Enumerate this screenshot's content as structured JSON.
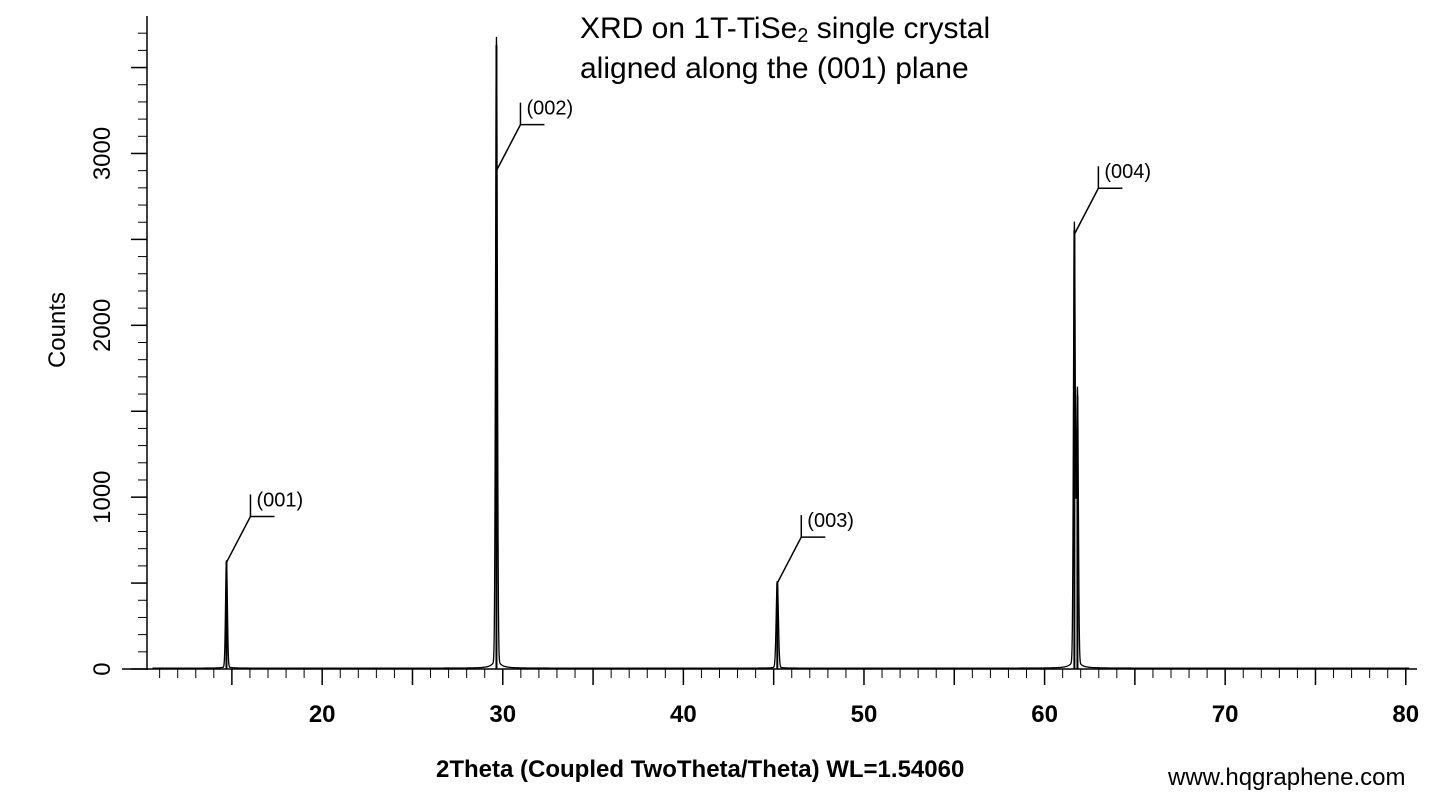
{
  "chart_data": {
    "type": "line",
    "title_parts": [
      "XRD on 1T-TiSe",
      "2",
      " single crystal"
    ],
    "title_line2": "aligned along the (001) plane",
    "xlabel": "2Theta (Coupled TwoTheta/Theta) WL=1.54060",
    "ylabel": "Counts",
    "xlim": [
      10.3,
      80.4
    ],
    "ylim": [
      0,
      3800
    ],
    "xticks": [
      20,
      30,
      40,
      50,
      60,
      70,
      80
    ],
    "yticks": [
      0,
      1000,
      2000,
      3000
    ],
    "baseline": 5,
    "peaks": [
      {
        "x": 14.7,
        "y": 620,
        "width": 0.05
      },
      {
        "x": 29.65,
        "y": 3630,
        "width": 0.05
      },
      {
        "x": 45.2,
        "y": 500,
        "width": 0.06
      },
      {
        "x": 61.65,
        "y": 2550,
        "width": 0.05
      },
      {
        "x": 61.82,
        "y": 1590,
        "width": 0.05
      }
    ],
    "annotations": [
      {
        "label": "(001)",
        "x": 14.7,
        "y": 620
      },
      {
        "label": "(002)",
        "x": 29.65,
        "y": 2900
      },
      {
        "label": "(003)",
        "x": 45.2,
        "y": 500
      },
      {
        "label": "(004)",
        "x": 61.65,
        "y": 2530
      }
    ]
  },
  "watermark": "www.hqgraphene.com"
}
